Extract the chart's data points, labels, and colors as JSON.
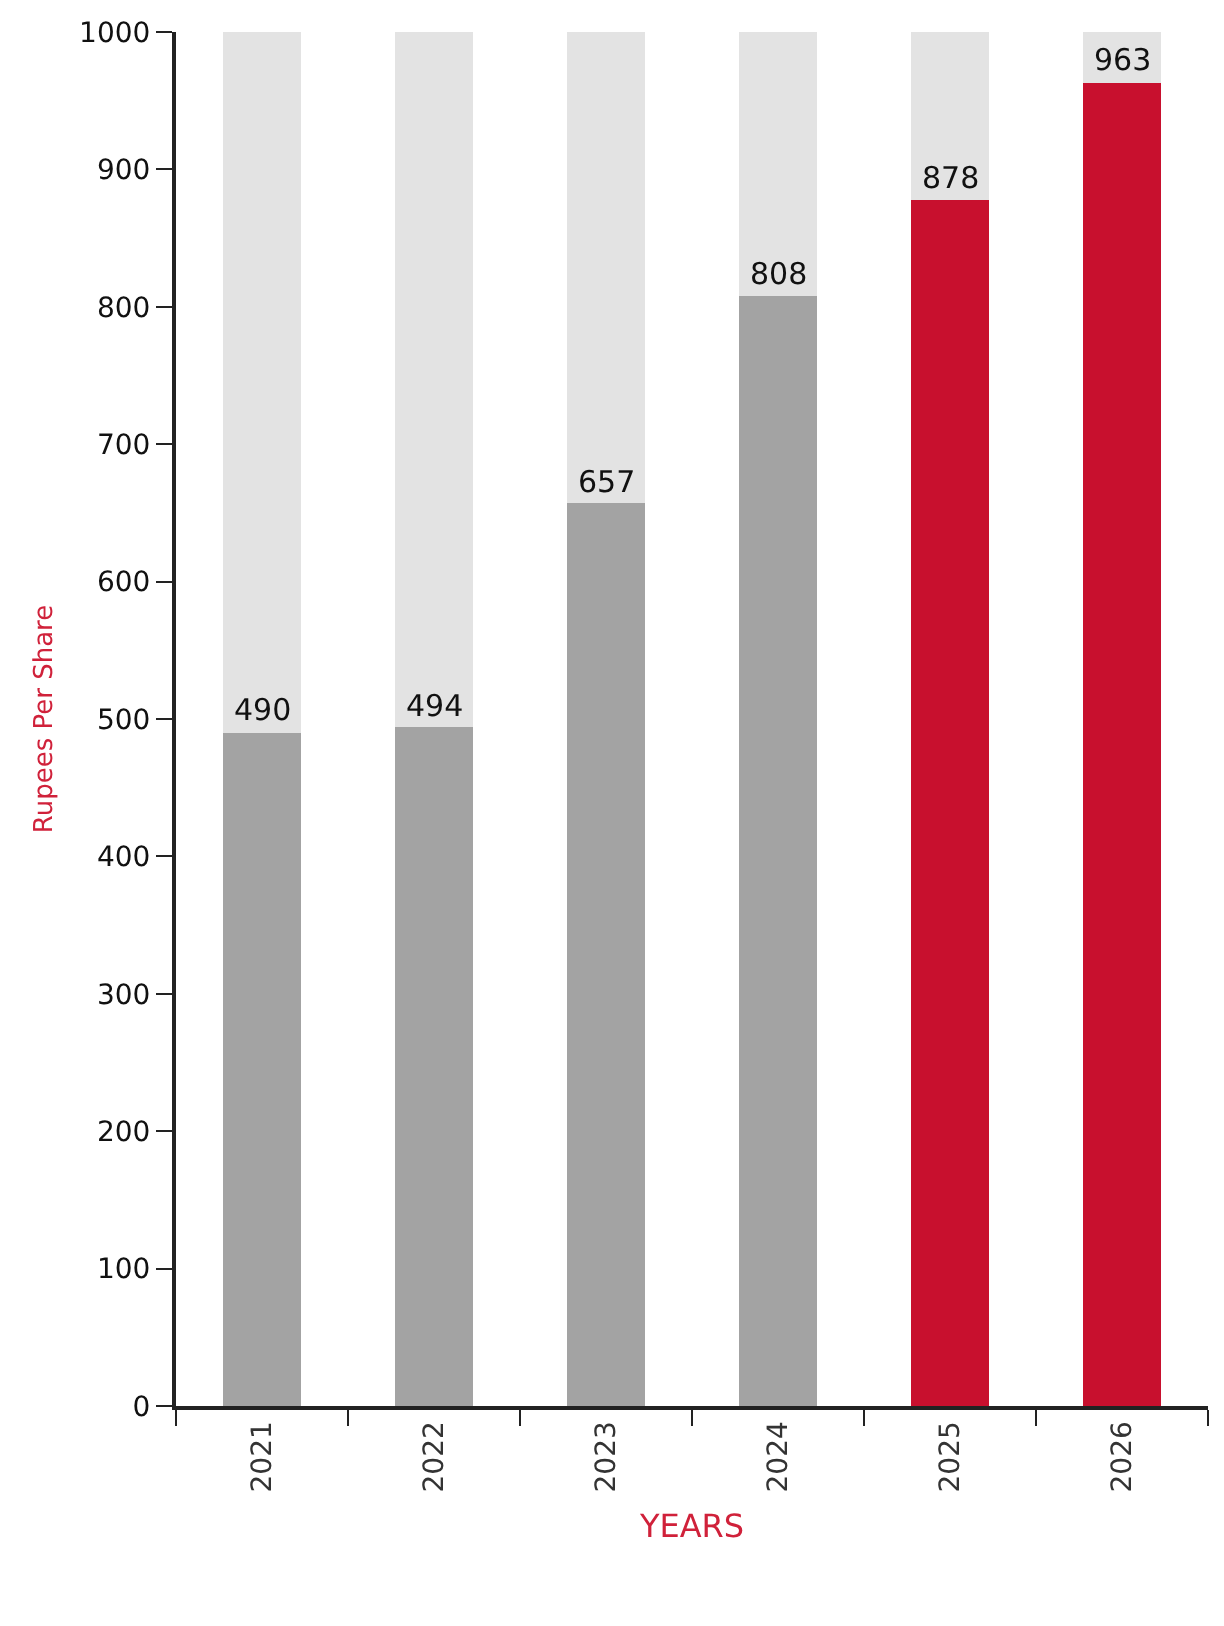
{
  "chart_data": {
    "type": "bar",
    "stacked": true,
    "xlabel": "YEARS",
    "ylabel": "Rupees Per Share",
    "categories": [
      "2021",
      "2022",
      "2023",
      "2024",
      "2025",
      "2026"
    ],
    "series": [
      {
        "colors": [
          "#a3a3a3",
          "#a3a3a3",
          "#a3a3a3",
          "#a3a3a3",
          "#c8102e",
          "#c8102e"
        ],
        "values": [
          490,
          494,
          657,
          808,
          878,
          963
        ],
        "value_labels": [
          "490",
          "494",
          "657",
          "808",
          "878",
          "963"
        ]
      },
      {
        "color": "#e3e3e3",
        "values": [
          510,
          506,
          343,
          192,
          122,
          37
        ]
      }
    ],
    "ylim": [
      0,
      1000
    ],
    "yticks": [
      0,
      100,
      200,
      300,
      400,
      500,
      600,
      700,
      800,
      900,
      1000
    ],
    "grid": false
  }
}
